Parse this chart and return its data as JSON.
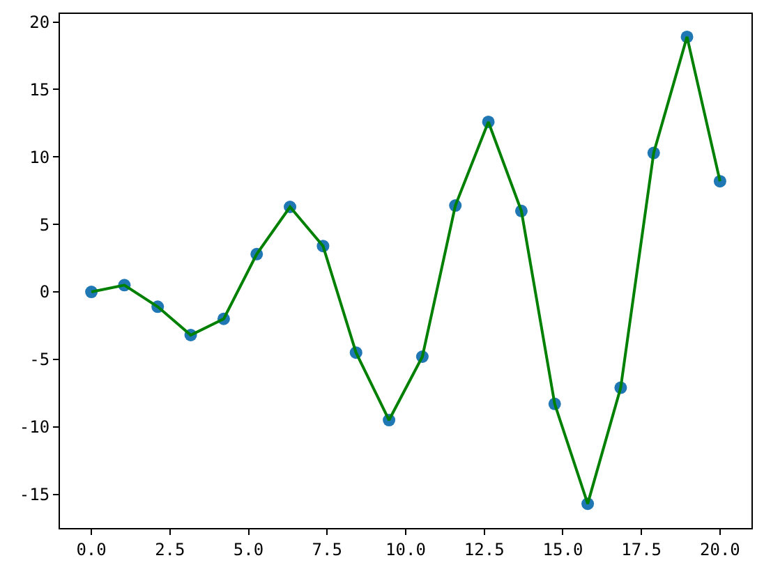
{
  "chart_data": {
    "type": "line",
    "x": [
      0,
      1.05,
      2.11,
      3.16,
      4.21,
      5.26,
      6.32,
      7.37,
      8.42,
      9.47,
      10.53,
      11.58,
      12.63,
      13.68,
      14.74,
      15.79,
      16.84,
      17.89,
      18.95,
      20.0
    ],
    "series": [
      {
        "type": "scatter",
        "color": "#1f77b4",
        "marker": "circle",
        "values": [
          0,
          0.5,
          -1.1,
          -3.2,
          -2.0,
          2.8,
          6.3,
          3.4,
          -4.5,
          -9.5,
          -4.8,
          6.4,
          12.6,
          6.0,
          -8.3,
          -15.7,
          -7.1,
          10.3,
          18.9,
          8.2
        ]
      },
      {
        "color": "#008000",
        "line_style": "solid",
        "values": [
          0,
          0.5,
          -1.1,
          -3.2,
          -2.0,
          2.8,
          6.3,
          3.4,
          -4.5,
          -9.5,
          -4.8,
          6.4,
          12.6,
          6.0,
          -8.3,
          -15.7,
          -7.1,
          10.3,
          18.9,
          8.2
        ]
      }
    ],
    "xlim": [
      -1,
      21
    ],
    "xticks": [
      {
        "value": 0,
        "label": "0.0"
      },
      {
        "value": 2.5,
        "label": "2.5"
      },
      {
        "value": 5,
        "label": "5.0"
      },
      {
        "value": 7.5,
        "label": "7.5"
      },
      {
        "value": 10,
        "label": "10.0"
      },
      {
        "value": 12.5,
        "label": "12.5"
      },
      {
        "value": 15,
        "label": "15.0"
      },
      {
        "value": 17.5,
        "label": "17.5"
      },
      {
        "value": 20,
        "label": "20.0"
      }
    ],
    "ylim": [
      -17.5,
      20.6
    ],
    "yticks": [
      -15,
      -10,
      -5,
      0,
      5,
      10,
      15,
      20
    ],
    "grid": false
  }
}
